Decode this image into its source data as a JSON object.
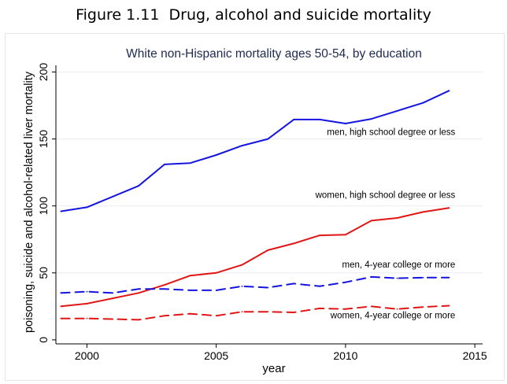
{
  "figure": {
    "caption": "Figure 1.11  Drug, alcohol and suicide mortality"
  },
  "chart_data": {
    "type": "line",
    "title": "White non-Hispanic mortality ages 50-54, by education",
    "xlabel": "year",
    "ylabel": "poisoning, suicide and alcohol-related liver mortality",
    "xlim": [
      1998.8,
      2015.3
    ],
    "ylim": [
      -3,
      205
    ],
    "x_ticks": [
      2000,
      2005,
      2010,
      2015
    ],
    "y_ticks": [
      0,
      50,
      100,
      150,
      200
    ],
    "grid": "horizontal",
    "legend": "none",
    "x": [
      1999,
      2000,
      2001,
      2002,
      2003,
      2004,
      2005,
      2006,
      2007,
      2008,
      2009,
      2010,
      2011,
      2012,
      2013,
      2014
    ],
    "series": [
      {
        "name": "men, high school degree or less",
        "color": "#1515e0",
        "dash": "solid",
        "values": [
          96,
          99,
          107,
          115,
          131,
          132,
          138,
          145,
          150,
          164.5,
          164.5,
          161.5,
          165,
          171,
          177,
          186
        ]
      },
      {
        "name": "women, high school degree or less",
        "color": "#e01515",
        "dash": "solid",
        "values": [
          25,
          27,
          31,
          35,
          41,
          48,
          50,
          56,
          67,
          72,
          78,
          78.5,
          89,
          91,
          95.5,
          98.5
        ]
      },
      {
        "name": "men, 4-year college or more",
        "color": "#1515e0",
        "dash": "dashed",
        "values": [
          35,
          36,
          35,
          38,
          38,
          37,
          37,
          40,
          39,
          42,
          40,
          43,
          47,
          46,
          46.5,
          46.5
        ]
      },
      {
        "name": "women, 4-year college or more",
        "color": "#e01515",
        "dash": "dashed",
        "values": [
          16,
          16,
          15.5,
          15,
          18,
          19.5,
          18,
          21,
          21,
          20.5,
          23.5,
          23,
          25,
          23,
          24.5,
          25.5
        ]
      }
    ],
    "annotations": [
      {
        "text": "men, high school degree or less",
        "x": 2014,
        "y": 153
      },
      {
        "text": "women, high school degree or less",
        "x": 2014,
        "y": 106
      },
      {
        "text": "men, 4-year college or more",
        "x": 2014,
        "y": 54
      },
      {
        "text": "women, 4-year college or more",
        "x": 2014,
        "y": 16
      }
    ]
  }
}
